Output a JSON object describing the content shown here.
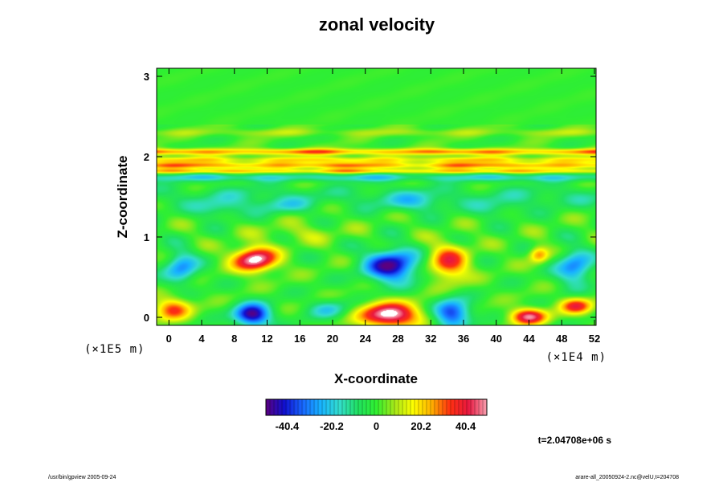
{
  "chart_data": {
    "type": "heatmap",
    "title": "zonal velocity",
    "xlabel": "X-coordinate",
    "ylabel": "Z-coordinate",
    "x_scale_label": "(×1E4 m)",
    "y_scale_label": "(×1E5 m)",
    "xlim": [
      -1.5,
      52.2
    ],
    "ylim": [
      -0.1,
      3.1
    ],
    "x_ticks": [
      0,
      4,
      8,
      12,
      16,
      20,
      24,
      28,
      32,
      36,
      40,
      44,
      48,
      52
    ],
    "x_tick_labels": [
      "0",
      "4",
      "8",
      "12",
      "16",
      "20",
      "24",
      "28",
      "32",
      "36",
      "40",
      "44",
      "48",
      "52"
    ],
    "y_ticks": [
      0,
      1,
      2,
      3
    ],
    "y_tick_labels": [
      "0",
      "1",
      "2",
      "3"
    ],
    "colorbar": {
      "range": [
        -50,
        50
      ],
      "tick_values": [
        -40.4,
        -20.2,
        0,
        20.2,
        40.4
      ],
      "tick_labels": [
        "-40.4",
        "-20.2",
        "0",
        "20.2",
        "40.4"
      ],
      "colors": [
        "#5a0080",
        "#1010d0",
        "#1868ff",
        "#18b4ff",
        "#33ddcc",
        "#20e060",
        "#30f030",
        "#a8e818",
        "#ffff00",
        "#ffb000",
        "#ff3010",
        "#e81840",
        "#f8a0b0"
      ]
    },
    "field": {
      "background": 0,
      "bands": [
        {
          "z": 2.06,
          "width": 0.04,
          "value": 30
        },
        {
          "z": 1.96,
          "width": 0.04,
          "value": 20
        },
        {
          "z": 1.89,
          "width": 0.04,
          "value": 28
        },
        {
          "z": 1.82,
          "width": 0.03,
          "value": 24
        },
        {
          "z": 1.74,
          "width": 0.05,
          "value": -18
        },
        {
          "z": 1.5,
          "width": 0.14,
          "value": -10
        },
        {
          "z": 2.3,
          "width": 0.05,
          "value": 8
        }
      ],
      "blobs": [
        {
          "x": 10.5,
          "z": 0.72,
          "rx": 2.6,
          "rz": 0.15,
          "value": 54
        },
        {
          "x": 27.2,
          "z": 0.64,
          "rx": 3.2,
          "rz": 0.2,
          "value": -48
        },
        {
          "x": 34.2,
          "z": 0.68,
          "rx": 2.4,
          "rz": 0.22,
          "value": 36
        },
        {
          "x": 49.6,
          "z": 0.62,
          "rx": 2.2,
          "rz": 0.22,
          "value": -30
        },
        {
          "x": 1.5,
          "z": 0.62,
          "rx": 2.0,
          "rz": 0.2,
          "value": -28
        },
        {
          "x": 45.2,
          "z": 0.78,
          "rx": 1.2,
          "rz": 0.1,
          "value": 28
        },
        {
          "x": 10.2,
          "z": 0.03,
          "rx": 2.2,
          "rz": 0.14,
          "value": -50
        },
        {
          "x": 27.0,
          "z": 0.03,
          "rx": 3.6,
          "rz": 0.15,
          "value": 55
        },
        {
          "x": 34.6,
          "z": 0.05,
          "rx": 2.2,
          "rz": 0.17,
          "value": -40
        },
        {
          "x": 44.0,
          "z": 0.01,
          "rx": 2.2,
          "rz": 0.1,
          "value": 46
        },
        {
          "x": 49.8,
          "z": 0.14,
          "rx": 2.0,
          "rz": 0.1,
          "value": 36
        },
        {
          "x": 0.5,
          "z": 0.1,
          "rx": 2.2,
          "rz": 0.14,
          "value": 32
        },
        {
          "x": 19.5,
          "z": 0.1,
          "rx": 2.5,
          "rz": 0.12,
          "value": -18
        },
        {
          "x": 6.0,
          "z": 1.35,
          "rx": 3.0,
          "rz": 0.12,
          "value": -14
        },
        {
          "x": 14.0,
          "z": 1.38,
          "rx": 3.5,
          "rz": 0.1,
          "value": -12
        },
        {
          "x": 30.0,
          "z": 1.42,
          "rx": 4.0,
          "rz": 0.12,
          "value": -12
        },
        {
          "x": 40.0,
          "z": 1.35,
          "rx": 3.0,
          "rz": 0.12,
          "value": -10
        },
        {
          "x": 16.0,
          "z": 1.05,
          "rx": 5.0,
          "rz": 0.12,
          "value": 8
        }
      ]
    }
  },
  "time_label": "t=2.04708e+06 s",
  "footer_left": "/usr/bin/gpview 2005-09-24",
  "footer_right": "arare-all_20050924-2.nc@velU,t=204708"
}
